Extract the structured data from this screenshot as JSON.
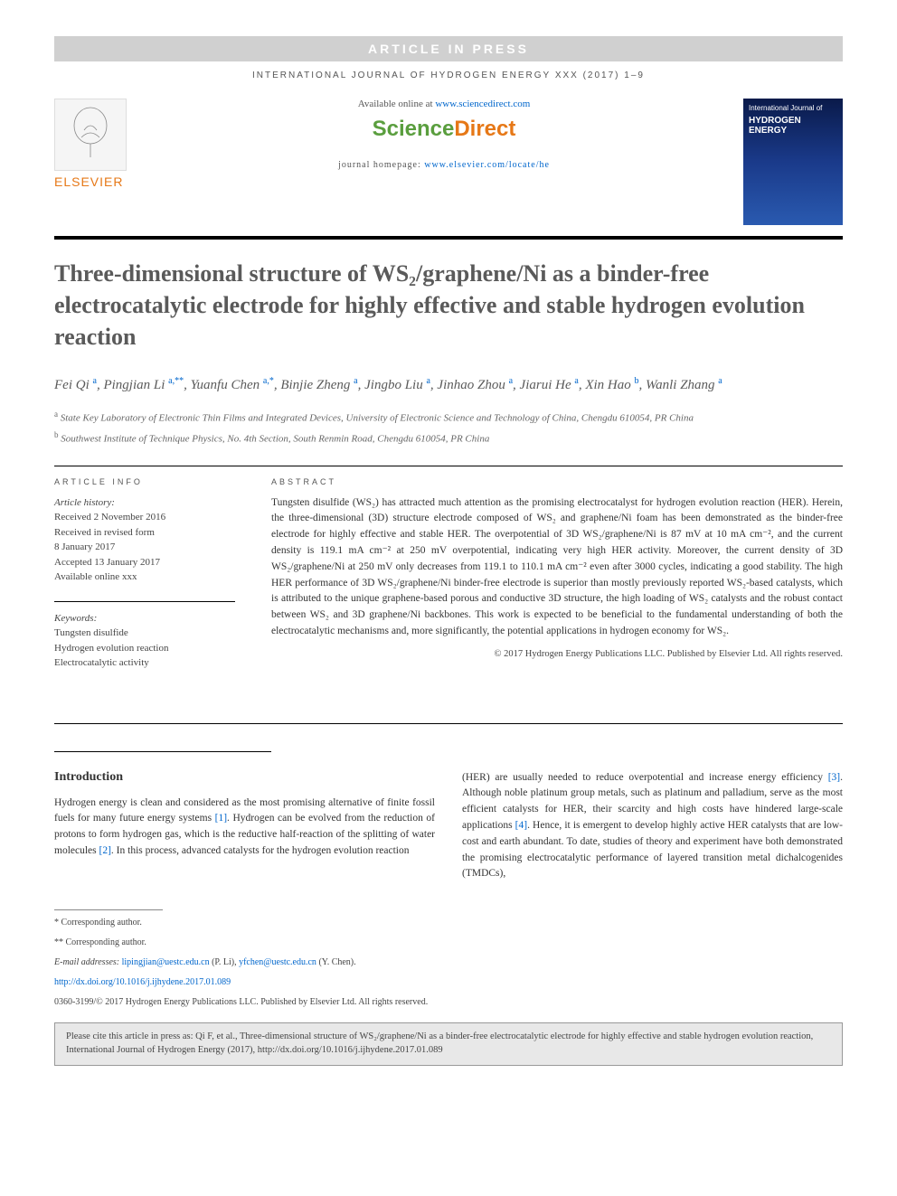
{
  "banner": "ARTICLE IN PRESS",
  "journalHeader": "INTERNATIONAL JOURNAL OF HYDROGEN ENERGY XXX (2017) 1–9",
  "header": {
    "elsevierLabel": "ELSEVIER",
    "availablePrefix": "Available online at ",
    "availableLink": "www.sciencedirect.com",
    "sdScience": "Science",
    "sdDirect": "Direct",
    "homepagePrefix": "journal homepage: ",
    "homepageLink": "www.elsevier.com/locate/he",
    "coverJournal": "International Journal of",
    "coverTitle": "HYDROGEN ENERGY"
  },
  "title": "Three-dimensional structure of WS₂/graphene/Ni as a binder-free electrocatalytic electrode for highly effective and stable hydrogen evolution reaction",
  "authorsHtml": "Fei Qi <sup>a</sup>, Pingjian Li <sup>a,**</sup>, Yuanfu Chen <sup>a,*</sup>, Binjie Zheng <sup>a</sup>, Jingbo Liu <sup>a</sup>, Jinhao Zhou <sup>a</sup>, Jiarui He <sup>a</sup>, Xin Hao <sup>b</sup>, Wanli Zhang <sup>a</sup>",
  "affiliations": [
    {
      "sup": "a",
      "text": " State Key Laboratory of Electronic Thin Films and Integrated Devices, University of Electronic Science and Technology of China, Chengdu 610054, PR China"
    },
    {
      "sup": "b",
      "text": " Southwest Institute of Technique Physics, No. 4th Section, South Renmin Road, Chengdu 610054, PR China"
    }
  ],
  "articleInfo": {
    "heading": "ARTICLE INFO",
    "historyLabel": "Article history:",
    "history": [
      "Received 2 November 2016",
      "Received in revised form",
      "8 January 2017",
      "Accepted 13 January 2017",
      "Available online xxx"
    ],
    "keywordsLabel": "Keywords:",
    "keywords": [
      "Tungsten disulfide",
      "Hydrogen evolution reaction",
      "Electrocatalytic activity"
    ]
  },
  "abstract": {
    "heading": "ABSTRACT",
    "text": "Tungsten disulfide (WS₂) has attracted much attention as the promising electrocatalyst for hydrogen evolution reaction (HER). Herein, the three-dimensional (3D) structure electrode composed of WS₂ and graphene/Ni foam has been demonstrated as the binder-free electrode for highly effective and stable HER. The overpotential of 3D WS₂/graphene/Ni is 87 mV at 10 mA cm⁻², and the current density is 119.1 mA cm⁻² at 250 mV overpotential, indicating very high HER activity. Moreover, the current density of 3D WS₂/graphene/Ni at 250 mV only decreases from 119.1 to 110.1 mA cm⁻² even after 3000 cycles, indicating a good stability. The high HER performance of 3D WS₂/graphene/Ni binder-free electrode is superior than mostly previously reported WS₂-based catalysts, which is attributed to the unique graphene-based porous and conductive 3D structure, the high loading of WS₂ catalysts and the robust contact between WS₂ and 3D graphene/Ni backbones. This work is expected to be beneficial to the fundamental understanding of both the electrocatalytic mechanisms and, more significantly, the potential applications in hydrogen economy for WS₂.",
    "copyright": "© 2017 Hydrogen Energy Publications LLC. Published by Elsevier Ltd. All rights reserved."
  },
  "introduction": {
    "heading": "Introduction",
    "col1": "Hydrogen energy is clean and considered as the most promising alternative of finite fossil fuels for many future energy systems [1]. Hydrogen can be evolved from the reduction of protons to form hydrogen gas, which is the reductive half-reaction of the splitting of water molecules [2]. In this process, advanced catalysts for the hydrogen evolution reaction",
    "col2": "(HER) are usually needed to reduce overpotential and increase energy efficiency [3]. Although noble platinum group metals, such as platinum and palladium, serve as the most efficient catalysts for HER, their scarcity and high costs have hindered large-scale applications [4]. Hence, it is emergent to develop highly active HER catalysts that are low-cost and earth abundant. To date, studies of theory and experiment have both demonstrated the promising electrocatalytic performance of layered transition metal dichalcogenides (TMDCs),",
    "refs": {
      "1": "[1]",
      "2": "[2]",
      "3": "[3]",
      "4": "[4]"
    }
  },
  "footnotes": {
    "corr1": "* Corresponding author.",
    "corr2": "** Corresponding author.",
    "emailLabel": "E-mail addresses: ",
    "email1": "lipingjian@uestc.edu.cn",
    "email1suffix": " (P. Li), ",
    "email2": "yfchen@uestc.edu.cn",
    "email2suffix": " (Y. Chen).",
    "doi": "http://dx.doi.org/10.1016/j.ijhydene.2017.01.089",
    "issn": "0360-3199/© 2017 Hydrogen Energy Publications LLC. Published by Elsevier Ltd. All rights reserved."
  },
  "citeBox": "Please cite this article in press as: Qi F, et al., Three-dimensional structure of WS₂/graphene/Ni as a binder-free electrocatalytic electrode for highly effective and stable hydrogen evolution reaction, International Journal of Hydrogen Energy (2017), http://dx.doi.org/10.1016/j.ijhydene.2017.01.089",
  "colors": {
    "elsevierOrange": "#e67817",
    "sdGreen": "#5a9e3e",
    "link": "#0066cc",
    "titleGray": "#5a5a5a",
    "bannerBg": "#d0d0d0"
  }
}
